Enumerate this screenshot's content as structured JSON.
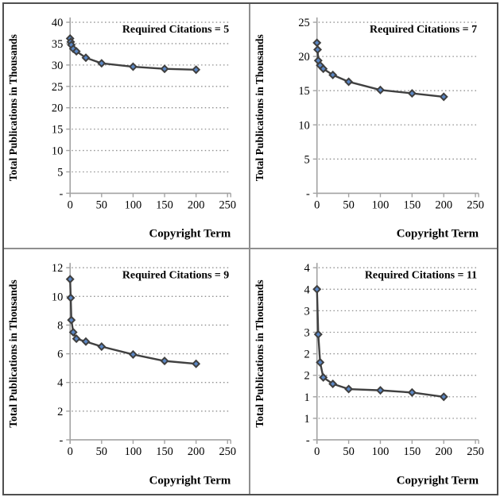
{
  "figure": {
    "ylabel": "Total Publications in Thousands",
    "xlabel": "Copyright Term",
    "colors": {
      "line": "#404040",
      "marker_fill": "#5b87c5",
      "marker_stroke": "#3f3f3f",
      "grid": "#8f8f8f",
      "axis": "#a3a3a3",
      "text": "#000000",
      "outer_border": "#4f4f4f",
      "divider": "#8f8f8f",
      "background": "#ffffff"
    }
  },
  "chart_data": [
    {
      "id": "rc-5",
      "type": "line",
      "title": "Required Citations = 5",
      "xlabel": "Copyright Term",
      "ylabel": "Total Publications in Thousands",
      "x": [
        0,
        1,
        2,
        5,
        10,
        25,
        50,
        100,
        150,
        200
      ],
      "y": [
        36.2,
        35.4,
        34.7,
        33.8,
        33.2,
        31.7,
        30.4,
        29.6,
        29.1,
        28.9
      ],
      "xlim": [
        0,
        250
      ],
      "ylim": [
        0,
        40
      ],
      "x_tick_values": [
        0,
        50,
        100,
        150,
        200,
        250
      ],
      "x_tick_labels": [
        "0",
        "50",
        "100",
        "150",
        "200",
        "250"
      ],
      "y_tick_values": [
        0,
        5,
        10,
        15,
        20,
        25,
        30,
        35,
        40
      ],
      "y_tick_labels": [
        "-",
        "5",
        "10",
        "15",
        "20",
        "25",
        "30",
        "35",
        "40"
      ],
      "grid": "dotted-horizontal",
      "legend": "none",
      "marker": "diamond"
    },
    {
      "id": "rc-7",
      "type": "line",
      "title": "Required Citations = 7",
      "xlabel": "Copyright Term",
      "ylabel": "Total Publications in Thousands",
      "x": [
        0,
        1,
        2,
        5,
        10,
        25,
        50,
        100,
        150,
        200
      ],
      "y": [
        22.0,
        21.0,
        19.4,
        18.7,
        18.2,
        17.3,
        16.3,
        15.1,
        14.6,
        14.1
      ],
      "xlim": [
        0,
        250
      ],
      "ylim": [
        0,
        25
      ],
      "x_tick_values": [
        0,
        50,
        100,
        150,
        200,
        250
      ],
      "x_tick_labels": [
        "0",
        "50",
        "100",
        "150",
        "200",
        "250"
      ],
      "y_tick_values": [
        0,
        5,
        10,
        15,
        20,
        25
      ],
      "y_tick_labels": [
        "-",
        "5",
        "10",
        "15",
        "20",
        "25"
      ],
      "grid": "dotted-horizontal",
      "legend": "none",
      "marker": "diamond"
    },
    {
      "id": "rc-9",
      "type": "line",
      "title": "Required Citations = 9",
      "xlabel": "Copyright Term",
      "ylabel": "Total Publications in Thousands",
      "x": [
        0,
        1,
        2,
        5,
        10,
        25,
        50,
        100,
        150,
        200
      ],
      "y": [
        11.2,
        9.9,
        8.35,
        7.5,
        7.05,
        6.85,
        6.5,
        5.95,
        5.5,
        5.3
      ],
      "xlim": [
        0,
        250
      ],
      "ylim": [
        0,
        12
      ],
      "x_tick_values": [
        0,
        50,
        100,
        150,
        200,
        250
      ],
      "x_tick_labels": [
        "0",
        "50",
        "100",
        "150",
        "200",
        "250"
      ],
      "y_tick_values": [
        0,
        2,
        4,
        6,
        8,
        10,
        12
      ],
      "y_tick_labels": [
        "-",
        "2",
        "4",
        "6",
        "8",
        "10",
        "12"
      ],
      "grid": "dotted-horizontal",
      "legend": "none",
      "marker": "diamond"
    },
    {
      "id": "rc-11",
      "type": "line",
      "title": "Required Citations = 11",
      "xlabel": "Copyright Term",
      "ylabel": "Total Publications in Thousands",
      "x": [
        0,
        2,
        5,
        10,
        25,
        50,
        100,
        150,
        200
      ],
      "y": [
        3.5,
        2.45,
        1.8,
        1.45,
        1.3,
        1.18,
        1.15,
        1.1,
        1.0
      ],
      "xlim": [
        0,
        250
      ],
      "ylim": [
        0,
        4
      ],
      "x_tick_values": [
        0,
        50,
        100,
        150,
        200,
        250
      ],
      "x_tick_labels": [
        "0",
        "50",
        "100",
        "150",
        "200",
        "250"
      ],
      "y_tick_values": [
        0,
        0.5,
        1,
        1.5,
        2,
        2.5,
        3,
        3.5,
        4
      ],
      "y_tick_labels": [
        "-",
        "1",
        "1",
        "2",
        "2",
        "3",
        "3",
        "4",
        "4"
      ],
      "grid": "dotted-horizontal",
      "legend": "none",
      "marker": "diamond"
    }
  ]
}
